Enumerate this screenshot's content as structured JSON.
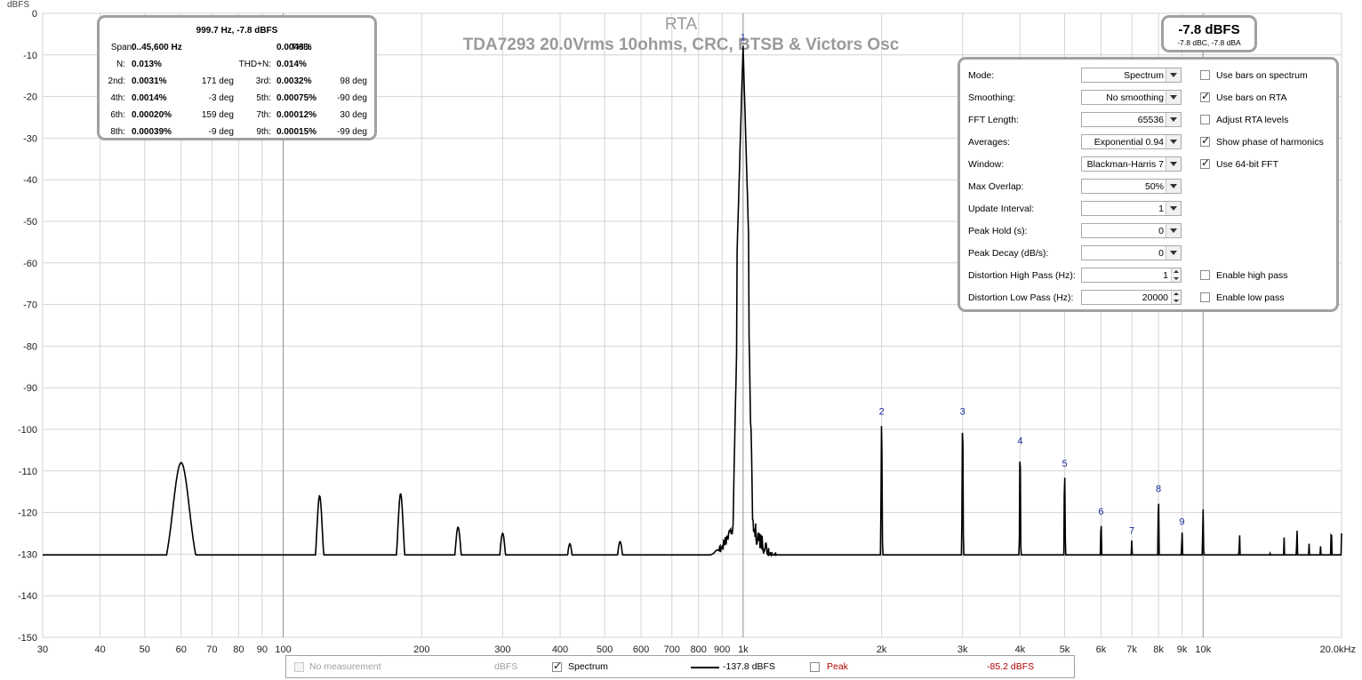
{
  "chart_data": {
    "type": "line",
    "title": "RTA",
    "subtitle": "TDA7293 20.0Vrms 10ohms, CRC, BTSB & Victors Osc",
    "ylabel": "dBFS",
    "xlabel": "",
    "x_scale": "log",
    "xlim": [
      30,
      20000
    ],
    "ylim": [
      -150,
      0
    ],
    "grid": true,
    "x_ticks": [
      {
        "v": 30,
        "label": "30"
      },
      {
        "v": 40,
        "label": "40"
      },
      {
        "v": 50,
        "label": "50"
      },
      {
        "v": 60,
        "label": "60"
      },
      {
        "v": 70,
        "label": "70"
      },
      {
        "v": 80,
        "label": "80"
      },
      {
        "v": 90,
        "label": "90"
      },
      {
        "v": 100,
        "label": "100"
      },
      {
        "v": 200,
        "label": "200"
      },
      {
        "v": 300,
        "label": "300"
      },
      {
        "v": 400,
        "label": "400"
      },
      {
        "v": 500,
        "label": "500"
      },
      {
        "v": 600,
        "label": "600"
      },
      {
        "v": 700,
        "label": "700"
      },
      {
        "v": 800,
        "label": "800"
      },
      {
        "v": 900,
        "label": "900"
      },
      {
        "v": 1000,
        "label": "1k"
      },
      {
        "v": 2000,
        "label": "2k"
      },
      {
        "v": 3000,
        "label": "3k"
      },
      {
        "v": 4000,
        "label": "4k"
      },
      {
        "v": 5000,
        "label": "5k"
      },
      {
        "v": 6000,
        "label": "6k"
      },
      {
        "v": 7000,
        "label": "7k"
      },
      {
        "v": 8000,
        "label": "8k"
      },
      {
        "v": 9000,
        "label": "9k"
      },
      {
        "v": 10000,
        "label": "10k"
      },
      {
        "v": 20000,
        "label": "20.0kHz"
      }
    ],
    "y_ticks": [
      {
        "v": 0,
        "label": "0"
      },
      {
        "v": -10,
        "label": "-10"
      },
      {
        "v": -20,
        "label": "-20"
      },
      {
        "v": -30,
        "label": "-30"
      },
      {
        "v": -40,
        "label": "-40"
      },
      {
        "v": -50,
        "label": "-50"
      },
      {
        "v": -60,
        "label": "-60"
      },
      {
        "v": -70,
        "label": "-70"
      },
      {
        "v": -80,
        "label": "-80"
      },
      {
        "v": -90,
        "label": "-90"
      },
      {
        "v": -100,
        "label": "-100"
      },
      {
        "v": -110,
        "label": "-110"
      },
      {
        "v": -120,
        "label": "-120"
      },
      {
        "v": -130,
        "label": "-130"
      },
      {
        "v": -140,
        "label": "-140"
      },
      {
        "v": -150,
        "label": "-150"
      }
    ],
    "series": [
      {
        "name": "Spectrum",
        "color": "#000000",
        "noise_floor": [
          [
            30,
            -135
          ],
          [
            40,
            -135.5
          ],
          [
            50,
            -136
          ],
          [
            55,
            -136
          ],
          [
            70,
            -136.5
          ],
          [
            100,
            -137
          ],
          [
            200,
            -137.5
          ],
          [
            400,
            -137.5
          ],
          [
            700,
            -136.5
          ],
          [
            850,
            -133
          ],
          [
            950,
            -124
          ],
          [
            1000,
            -7.8
          ],
          [
            1050,
            -124
          ],
          [
            1200,
            -133
          ],
          [
            1500,
            -137
          ],
          [
            2000,
            -139.5
          ],
          [
            3000,
            -141.5
          ],
          [
            5000,
            -142.5
          ],
          [
            10000,
            -143
          ],
          [
            20000,
            -144
          ]
        ],
        "peaks": [
          {
            "f": 60,
            "db": -108
          },
          {
            "f": 120,
            "db": -116
          },
          {
            "f": 180,
            "db": -115.5
          },
          {
            "f": 240,
            "db": -123.5
          },
          {
            "f": 300,
            "db": -125
          },
          {
            "f": 360,
            "db": -133
          },
          {
            "f": 420,
            "db": -127.5
          },
          {
            "f": 480,
            "db": -133.5
          },
          {
            "f": 540,
            "db": -127
          },
          {
            "f": 660,
            "db": -134
          },
          {
            "f": 720,
            "db": -131
          },
          {
            "f": 800,
            "db": -132
          },
          {
            "f": 880,
            "db": -129
          },
          {
            "f": 999.7,
            "db": -7.8
          },
          {
            "f": 2000,
            "db": -97.8
          },
          {
            "f": 3000,
            "db": -97.8
          },
          {
            "f": 4000,
            "db": -104.8
          },
          {
            "f": 5000,
            "db": -110.3
          },
          {
            "f": 6000,
            "db": -121.8
          },
          {
            "f": 7000,
            "db": -126.4
          },
          {
            "f": 8000,
            "db": -116.3
          },
          {
            "f": 9000,
            "db": -124.2
          },
          {
            "f": 10000,
            "db": -119
          },
          {
            "f": 12000,
            "db": -125
          },
          {
            "f": 14000,
            "db": -129
          },
          {
            "f": 15000,
            "db": -126
          },
          {
            "f": 16000,
            "db": -124
          },
          {
            "f": 17000,
            "db": -127.5
          },
          {
            "f": 18000,
            "db": -128
          },
          {
            "f": 19000,
            "db": -123.5
          },
          {
            "f": 20000,
            "db": -125
          }
        ]
      }
    ],
    "harmonic_markers": [
      {
        "label": "1",
        "f": 999.7,
        "db": -7.8
      },
      {
        "label": "2",
        "f": 2000,
        "db": -97.8
      },
      {
        "label": "3",
        "f": 3000,
        "db": -97.8
      },
      {
        "label": "4",
        "f": 4000,
        "db": -104.8
      },
      {
        "label": "5",
        "f": 5000,
        "db": -110.3
      },
      {
        "label": "6",
        "f": 6000,
        "db": -121.8
      },
      {
        "label": "7",
        "f": 7000,
        "db": -126.4
      },
      {
        "label": "8",
        "f": 8000,
        "db": -116.3
      },
      {
        "label": "9",
        "f": 9000,
        "db": -124.2
      }
    ]
  },
  "distortion": {
    "header": "999.7 Hz, -7.8 dBFS",
    "span_label": "Span:",
    "span_value": "0..45,600 Hz",
    "thd_label": "THD:",
    "thd_value": "0.0048%",
    "n_label": "N:",
    "n_value": "0.013%",
    "thdn_label": "THD+N:",
    "thdn_value": "0.014%",
    "harmonics": [
      {
        "label": "2nd:",
        "value": "0.0031%",
        "phase": "171 deg"
      },
      {
        "label": "3rd:",
        "value": "0.0032%",
        "phase": "98 deg"
      },
      {
        "label": "4th:",
        "value": "0.0014%",
        "phase": "-3 deg"
      },
      {
        "label": "5th:",
        "value": "0.00075%",
        "phase": "-90 deg"
      },
      {
        "label": "6th:",
        "value": "0.00020%",
        "phase": "159 deg"
      },
      {
        "label": "7th:",
        "value": "0.00012%",
        "phase": "30 deg"
      },
      {
        "label": "8th:",
        "value": "0.00039%",
        "phase": "-9 deg"
      },
      {
        "label": "9th:",
        "value": "0.00015%",
        "phase": "-99 deg"
      }
    ]
  },
  "level": {
    "main": "-7.8 dBFS",
    "sub": "-7.8 dBC, -7.8 dBA"
  },
  "controls": {
    "mode": {
      "label": "Mode:",
      "value": "Spectrum"
    },
    "smoothing": {
      "label": "Smoothing:",
      "value": "No  smoothing"
    },
    "fft_length": {
      "label": "FFT Length:",
      "value": "65536"
    },
    "averages": {
      "label": "Averages:",
      "value": "Exponential 0.94"
    },
    "window": {
      "label": "Window:",
      "value": "Blackman-Harris 7"
    },
    "max_overlap": {
      "label": "Max Overlap:",
      "value": "50%"
    },
    "update_interval": {
      "label": "Update Interval:",
      "value": "1"
    },
    "peak_hold": {
      "label": "Peak Hold (s):",
      "value": "0"
    },
    "peak_decay": {
      "label": "Peak Decay (dB/s):",
      "value": "0"
    },
    "dist_high_pass": {
      "label": "Distortion High Pass (Hz):",
      "value": "1"
    },
    "dist_low_pass": {
      "label": "Distortion Low Pass (Hz):",
      "value": "20000"
    },
    "use_bars_spectrum": {
      "label": "Use bars on spectrum",
      "checked": false
    },
    "use_bars_rta": {
      "label": "Use bars on RTA",
      "checked": true
    },
    "adjust_rta_levels": {
      "label": "Adjust RTA levels",
      "checked": false
    },
    "show_phase": {
      "label": "Show phase of harmonics",
      "checked": true
    },
    "use_64bit_fft": {
      "label": "Use 64-bit FFT",
      "checked": true
    },
    "enable_high_pass": {
      "label": "Enable high pass",
      "checked": false
    },
    "enable_low_pass": {
      "label": "Enable low pass",
      "checked": false
    }
  },
  "legend": {
    "no_measurement": "No measurement",
    "unit": "dBFS",
    "spectrum_label": "Spectrum",
    "spectrum_value": "-137.8 dBFS",
    "peak_label": "Peak",
    "peak_value": "-85.2 dBFS"
  }
}
